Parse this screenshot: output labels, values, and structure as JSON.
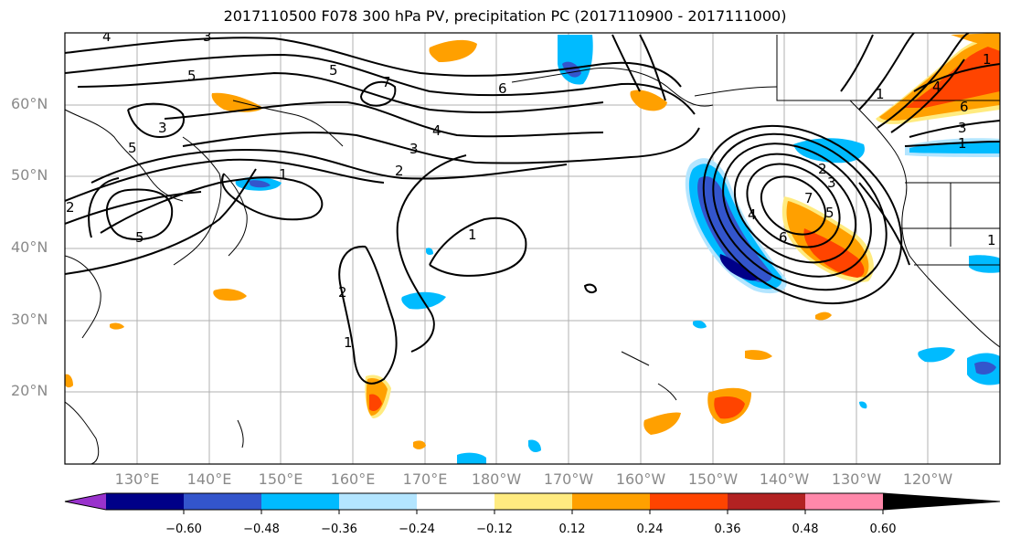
{
  "title": "2017110500 F078 300 hPa PV, precipitation PC (2017110900 - 2017111000)",
  "map": {
    "lat_labels": [
      "60°N",
      "50°N",
      "40°N",
      "30°N",
      "20°N"
    ],
    "lon_labels": [
      "130°E",
      "140°E",
      "150°E",
      "160°E",
      "170°E",
      "180°W",
      "170°W",
      "160°W",
      "150°W",
      "140°W",
      "130°W",
      "120°W"
    ],
    "pv_contour_labels": [
      "4",
      "3",
      "5",
      "5",
      "7",
      "6",
      "3",
      "4",
      "5",
      "3",
      "2",
      "1",
      "1",
      "2",
      "1",
      "5",
      "4",
      "6",
      "7",
      "5",
      "3",
      "2",
      "1",
      "4",
      "6",
      "1",
      "3",
      "1",
      "4",
      "2",
      "1"
    ]
  },
  "colorbar": {
    "tick_labels": [
      "−0.60",
      "−0.48",
      "−0.36",
      "−0.24",
      "−0.12",
      "0.12",
      "0.24",
      "0.36",
      "0.48",
      "0.60"
    ],
    "colors": {
      "below": "#9932cc",
      "c1": "#000088",
      "c2": "#3355cc",
      "c3": "#00bbff",
      "c4": "#b3e5ff",
      "c5": "#ffffff",
      "c6": "#ffeb80",
      "c7": "#ffa000",
      "c8": "#ff4400",
      "c9": "#b22222",
      "above": "#ff88aa"
    }
  }
}
